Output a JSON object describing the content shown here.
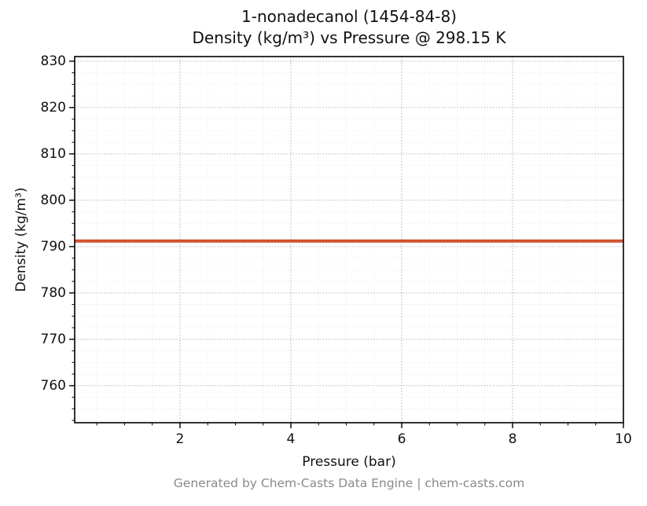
{
  "title_line1": "1-nonadecanol (1454-84-8)",
  "title_line2": "Density (kg/m³) vs Pressure @ 298.15 K",
  "footer_text": "Generated by Chem-Casts Data Engine | chem-casts.com",
  "chart_data": {
    "type": "line",
    "title": "1-nonadecanol (1454-84-8) — Density (kg/m³) vs Pressure @ 298.15 K",
    "xlabel": "Pressure (bar)",
    "ylabel": "Density (kg/m³)",
    "xlim": [
      0.1,
      10
    ],
    "ylim": [
      752,
      831
    ],
    "x_ticks": [
      2,
      4,
      6,
      8,
      10
    ],
    "y_ticks": [
      760,
      770,
      780,
      790,
      800,
      810,
      820,
      830
    ],
    "x_minor_step": 0.5,
    "y_minor_step": 2.5,
    "grid": true,
    "grid_style": "dotted",
    "legend": "none",
    "series": [
      {
        "name": "Density @ 298.15 K",
        "color": "#d1512d",
        "linewidth": 4,
        "x": [
          0.1,
          1.2,
          2.3,
          3.4,
          4.5,
          5.6,
          6.7,
          7.8,
          8.9,
          10.0
        ],
        "y": [
          791.2,
          791.2,
          791.2,
          791.2,
          791.2,
          791.2,
          791.2,
          791.2,
          791.2,
          791.2
        ]
      }
    ]
  }
}
